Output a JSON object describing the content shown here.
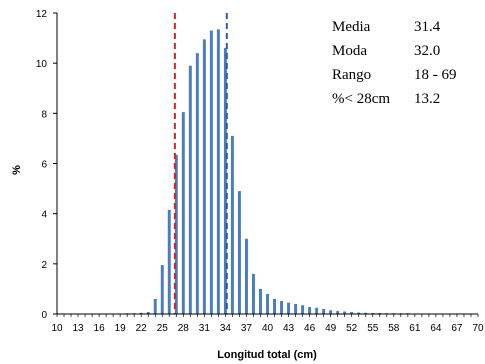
{
  "chart_data": {
    "type": "bar",
    "xlabel": "Longitud total (cm)",
    "ylabel": "%",
    "ylim": [
      0,
      12
    ],
    "xlim": [
      10,
      70
    ],
    "yticks": [
      0,
      2,
      4,
      6,
      8,
      10,
      12
    ],
    "xticks": [
      10,
      13,
      16,
      19,
      22,
      25,
      28,
      31,
      34,
      37,
      40,
      43,
      46,
      49,
      52,
      55,
      58,
      61,
      64,
      67,
      70
    ],
    "grid": false,
    "bar_color": "#4a7dc0",
    "x": [
      18,
      19,
      20,
      21,
      22,
      23,
      24,
      25,
      26,
      27,
      28,
      29,
      30,
      31,
      32,
      33,
      34,
      35,
      36,
      37,
      38,
      39,
      40,
      41,
      42,
      43,
      44,
      45,
      46,
      47,
      48,
      49,
      50,
      51,
      52,
      53,
      54,
      55,
      56,
      57,
      58,
      59,
      60,
      61,
      62,
      63,
      64,
      65,
      66,
      67,
      68,
      69
    ],
    "values": [
      0.02,
      0.02,
      0.03,
      0.03,
      0.05,
      0.08,
      0.6,
      1.95,
      4.15,
      6.35,
      8.05,
      9.9,
      10.4,
      10.95,
      11.3,
      11.35,
      10.6,
      7.1,
      4.9,
      3.0,
      1.6,
      1.0,
      0.8,
      0.6,
      0.52,
      0.45,
      0.4,
      0.35,
      0.28,
      0.25,
      0.2,
      0.15,
      0.12,
      0.1,
      0.08,
      0.06,
      0.05,
      0.04,
      0.04,
      0.03,
      0.03,
      0.03,
      0.03,
      0.02,
      0.02,
      0.02,
      0.02,
      0.02,
      0.02,
      0.02,
      0.02,
      0.02
    ],
    "reference_lines": [
      {
        "x": 26.8,
        "color": "#d2232a",
        "style": "dashed"
      },
      {
        "x": 34.2,
        "color": "#2b5aa8",
        "style": "dashed"
      }
    ],
    "annotations": [
      {
        "label": "Media",
        "value": "31.4",
        "color": "#000000"
      },
      {
        "label": "Moda",
        "value": "32.0",
        "color": "#000000"
      },
      {
        "label": "Rango",
        "value": "18 - 69",
        "color": "#000000"
      },
      {
        "label": "%< 28cm",
        "value": "13.2",
        "color": "#d2232a"
      }
    ]
  }
}
